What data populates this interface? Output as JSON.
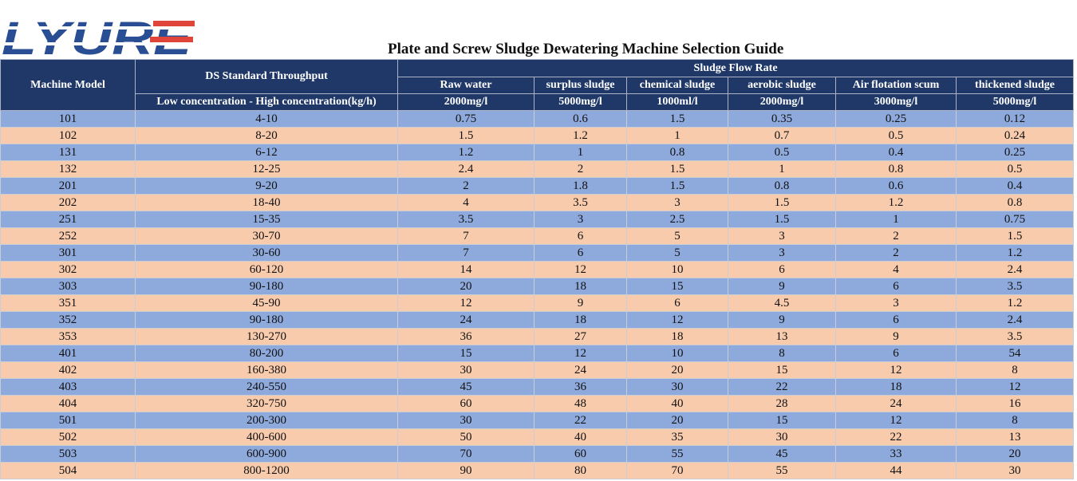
{
  "brand": {
    "logo_text": "LYURE",
    "logo_color": "#2a4e93",
    "logo_stripe_color": "#e0453a"
  },
  "title": "Plate and Screw Sludge Dewatering Machine Selection Guide",
  "header": {
    "model": "Machine Model",
    "throughput": "DS Standard Throughput",
    "throughput_sub": "Low concentration - High concentration(kg/h)",
    "flow_rate": "Sludge Flow Rate",
    "columns": [
      {
        "name": "Raw water",
        "unit": "2000mg/l"
      },
      {
        "name": "surplus sludge",
        "unit": "5000mg/l"
      },
      {
        "name": "chemical sludge",
        "unit": "1000ml/l"
      },
      {
        "name": "aerobic sludge",
        "unit": "2000mg/l"
      },
      {
        "name": "Air flotation scum",
        "unit": "3000mg/l"
      },
      {
        "name": "thickened sludge",
        "unit": "5000mg/l"
      }
    ]
  },
  "colors": {
    "header_bg": "#1f3868",
    "row_blue": "#8ea9db",
    "row_peach": "#f8cbad"
  },
  "rows": [
    [
      "101",
      "4-10",
      "0.75",
      "0.6",
      "1.5",
      "0.35",
      "0.25",
      "0.12"
    ],
    [
      "102",
      "8-20",
      "1.5",
      "1.2",
      "1",
      "0.7",
      "0.5",
      "0.24"
    ],
    [
      "131",
      "6-12",
      "1.2",
      "1",
      "0.8",
      "0.5",
      "0.4",
      "0.25"
    ],
    [
      "132",
      "12-25",
      "2.4",
      "2",
      "1.5",
      "1",
      "0.8",
      "0.5"
    ],
    [
      "201",
      "9-20",
      "2",
      "1.8",
      "1.5",
      "0.8",
      "0.6",
      "0.4"
    ],
    [
      "202",
      "18-40",
      "4",
      "3.5",
      "3",
      "1.5",
      "1.2",
      "0.8"
    ],
    [
      "251",
      "15-35",
      "3.5",
      "3",
      "2.5",
      "1.5",
      "1",
      "0.75"
    ],
    [
      "252",
      "30-70",
      "7",
      "6",
      "5",
      "3",
      "2",
      "1.5"
    ],
    [
      "301",
      "30-60",
      "7",
      "6",
      "5",
      "3",
      "2",
      "1.2"
    ],
    [
      "302",
      "60-120",
      "14",
      "12",
      "10",
      "6",
      "4",
      "2.4"
    ],
    [
      "303",
      "90-180",
      "20",
      "18",
      "15",
      "9",
      "6",
      "3.5"
    ],
    [
      "351",
      "45-90",
      "12",
      "9",
      "6",
      "4.5",
      "3",
      "1.2"
    ],
    [
      "352",
      "90-180",
      "24",
      "18",
      "12",
      "9",
      "6",
      "2.4"
    ],
    [
      "353",
      "130-270",
      "36",
      "27",
      "18",
      "13",
      "9",
      "3.5"
    ],
    [
      "401",
      "80-200",
      "15",
      "12",
      "10",
      "8",
      "6",
      "54"
    ],
    [
      "402",
      "160-380",
      "30",
      "24",
      "20",
      "15",
      "12",
      "8"
    ],
    [
      "403",
      "240-550",
      "45",
      "36",
      "30",
      "22",
      "18",
      "12"
    ],
    [
      "404",
      "320-750",
      "60",
      "48",
      "40",
      "28",
      "24",
      "16"
    ],
    [
      "501",
      "200-300",
      "30",
      "22",
      "20",
      "15",
      "12",
      "8"
    ],
    [
      "502",
      "400-600",
      "50",
      "40",
      "35",
      "30",
      "22",
      "13"
    ],
    [
      "503",
      "600-900",
      "70",
      "60",
      "55",
      "45",
      "33",
      "20"
    ],
    [
      "504",
      "800-1200",
      "90",
      "80",
      "70",
      "55",
      "44",
      "30"
    ]
  ]
}
